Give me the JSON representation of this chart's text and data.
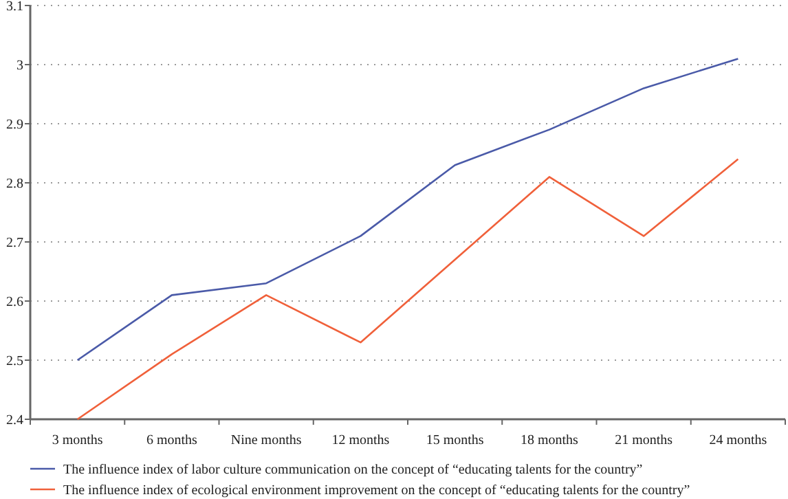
{
  "chart_data": {
    "type": "line",
    "categories": [
      "3 months",
      "6 months",
      "Nine months",
      "12 months",
      "15 months",
      "18 months",
      "21 months",
      "24 months"
    ],
    "series": [
      {
        "name": "The influence index of labor culture communication on the concept of “educating talents for the country”",
        "color": "#4a5aa8",
        "values": [
          2.5,
          2.61,
          2.63,
          2.71,
          2.83,
          2.89,
          2.96,
          3.01
        ]
      },
      {
        "name": "The influence index of ecological environment improvement on the concept of “educating talents for the country”",
        "color": "#f0603a",
        "values": [
          2.4,
          2.51,
          2.61,
          2.53,
          2.67,
          2.81,
          2.71,
          2.84
        ]
      }
    ],
    "ylim": [
      2.4,
      3.1
    ],
    "yticks": [
      2.4,
      2.5,
      2.6,
      2.7,
      2.8,
      2.9,
      3,
      3.1
    ],
    "grid": "y",
    "legend": "bottom",
    "marker": "none",
    "line_style": "solid"
  }
}
